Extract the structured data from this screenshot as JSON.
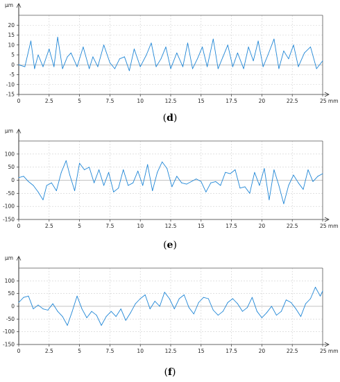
{
  "chart_data": [
    {
      "type": "line",
      "label": "d",
      "ylabel": "µm",
      "xunit": "mm",
      "xlim": [
        0,
        25
      ],
      "ylim": [
        -15,
        25
      ],
      "xticks": [
        0,
        2.5,
        5,
        7.5,
        10,
        12.5,
        15,
        17.5,
        20,
        22.5,
        25
      ],
      "xtick_labels": [
        "0",
        "2.5",
        "5",
        "7.5",
        "10",
        "12.5",
        "15",
        "17.5",
        "20",
        "22.5",
        "25 mm"
      ],
      "yticks": [
        -15,
        -10,
        -5,
        0,
        5,
        10,
        15,
        20
      ],
      "ytick_labels": [
        "-15",
        "-10",
        "-5",
        "0",
        "5",
        "10",
        "15",
        "20"
      ],
      "color": "#1f86d6",
      "series": [
        {
          "x": [
            0,
            0.5,
            1,
            1.3,
            1.6,
            2,
            2.5,
            2.9,
            3.2,
            3.6,
            4,
            4.3,
            4.8,
            5.3,
            5.8,
            6.1,
            6.5,
            7,
            7.5,
            7.9,
            8.3,
            8.7,
            9.1,
            9.5,
            10,
            10.5,
            10.9,
            11.3,
            11.7,
            12.1,
            12.5,
            13,
            13.5,
            13.9,
            14.3,
            14.7,
            15.1,
            15.5,
            16,
            16.4,
            16.8,
            17.2,
            17.6,
            18,
            18.5,
            18.9,
            19.3,
            19.7,
            20.1,
            20.5,
            21,
            21.4,
            21.8,
            22.2,
            22.6,
            23,
            23.5,
            24,
            24.5,
            25
          ],
          "y": [
            0,
            -1,
            12,
            -2,
            5,
            -1,
            8,
            -1,
            14,
            -2,
            4,
            6,
            -1,
            9,
            -2,
            4,
            -1,
            10,
            1,
            -2,
            3,
            4,
            -3,
            8,
            -1,
            5,
            11,
            -1,
            3,
            9,
            -2,
            6,
            -1,
            11,
            -2,
            3,
            9,
            -1,
            13,
            -2,
            4,
            10,
            -1,
            6,
            -2,
            9,
            2,
            12,
            -1,
            5,
            13,
            -2,
            7,
            3,
            10,
            -1,
            6,
            9,
            -2,
            2
          ]
        }
      ]
    },
    {
      "type": "line",
      "label": "e",
      "ylabel": "µm",
      "xunit": "mm",
      "xlim": [
        0,
        25
      ],
      "ylim": [
        -150,
        150
      ],
      "xticks": [
        0,
        2.5,
        5,
        7.5,
        10,
        12.5,
        15,
        17.5,
        20,
        22.5,
        25
      ],
      "xtick_labels": [
        "0",
        "2.5",
        "5",
        "7.5",
        "10",
        "12.5",
        "15",
        "17.5",
        "20",
        "22.5",
        "25 mm"
      ],
      "yticks": [
        -150,
        -100,
        -50,
        0,
        50,
        100
      ],
      "ytick_labels": [
        "-150",
        "-100",
        "-50",
        "0",
        "50",
        "100"
      ],
      "color": "#1f86d6",
      "series": [
        {
          "x": [
            0,
            0.4,
            0.8,
            1.2,
            1.6,
            2,
            2.3,
            2.7,
            3.1,
            3.5,
            3.9,
            4.2,
            4.6,
            5,
            5.4,
            5.8,
            6.2,
            6.6,
            7,
            7.4,
            7.8,
            8.2,
            8.6,
            9,
            9.4,
            9.8,
            10.2,
            10.6,
            11,
            11.4,
            11.8,
            12.2,
            12.6,
            13,
            13.4,
            13.8,
            14.2,
            14.6,
            15,
            15.4,
            15.8,
            16.2,
            16.6,
            17,
            17.4,
            17.8,
            18.2,
            18.6,
            19,
            19.4,
            19.8,
            20.2,
            20.6,
            21,
            21.4,
            21.8,
            22.2,
            22.6,
            23,
            23.4,
            23.8,
            24.2,
            24.6,
            25
          ],
          "y": [
            10,
            15,
            -5,
            -20,
            -45,
            -75,
            -20,
            -10,
            -40,
            30,
            75,
            20,
            -40,
            65,
            40,
            50,
            -10,
            40,
            -20,
            30,
            -45,
            -30,
            40,
            -20,
            -10,
            35,
            -20,
            60,
            -40,
            30,
            70,
            45,
            -25,
            15,
            -10,
            -15,
            -5,
            5,
            -5,
            -45,
            -10,
            -5,
            -20,
            30,
            25,
            40,
            -30,
            -25,
            -50,
            30,
            -20,
            45,
            -75,
            40,
            -20,
            -90,
            -20,
            20,
            -10,
            -35,
            40,
            -5,
            15,
            25
          ]
        }
      ]
    },
    {
      "type": "line",
      "label": "f",
      "ylabel": "µm",
      "xunit": "mm",
      "xlim": [
        0,
        25
      ],
      "ylim": [
        -150,
        150
      ],
      "xticks": [
        0,
        2.5,
        5,
        7.5,
        10,
        12.5,
        15,
        17.5,
        20,
        22.5,
        25
      ],
      "xtick_labels": [
        "0",
        "2.5",
        "5",
        "7.5",
        "10",
        "12.5",
        "15",
        "17.5",
        "20",
        "22.5",
        "25 mm"
      ],
      "yticks": [
        -150,
        -100,
        -50,
        0,
        50,
        100
      ],
      "ytick_labels": [
        "-150",
        "-100",
        "-50",
        "0",
        "50",
        "100"
      ],
      "color": "#1f86d6",
      "series": [
        {
          "x": [
            0,
            0.4,
            0.8,
            1.2,
            1.6,
            2,
            2.4,
            2.8,
            3.2,
            3.6,
            4,
            4.4,
            4.8,
            5.2,
            5.6,
            6,
            6.4,
            6.8,
            7.2,
            7.6,
            8,
            8.4,
            8.8,
            9.2,
            9.6,
            10,
            10.4,
            10.8,
            11.2,
            11.6,
            12,
            12.4,
            12.8,
            13.2,
            13.6,
            14,
            14.4,
            14.8,
            15.2,
            15.6,
            16,
            16.4,
            16.8,
            17.2,
            17.6,
            18,
            18.4,
            18.8,
            19.2,
            19.6,
            20,
            20.4,
            20.8,
            21.2,
            21.6,
            22,
            22.4,
            22.8,
            23.2,
            23.6,
            24,
            24.4,
            24.8,
            25
          ],
          "y": [
            15,
            35,
            40,
            -10,
            5,
            -10,
            -15,
            10,
            -20,
            -40,
            -75,
            -20,
            40,
            -10,
            -45,
            -20,
            -35,
            -75,
            -40,
            -20,
            -40,
            -10,
            -55,
            -25,
            10,
            30,
            45,
            -10,
            20,
            0,
            55,
            30,
            -10,
            30,
            45,
            -5,
            -30,
            15,
            35,
            30,
            -15,
            -35,
            -20,
            15,
            30,
            10,
            -20,
            -5,
            35,
            -20,
            -45,
            -25,
            0,
            -35,
            -20,
            25,
            15,
            -10,
            -40,
            10,
            30,
            75,
            40,
            60
          ]
        }
      ]
    }
  ]
}
